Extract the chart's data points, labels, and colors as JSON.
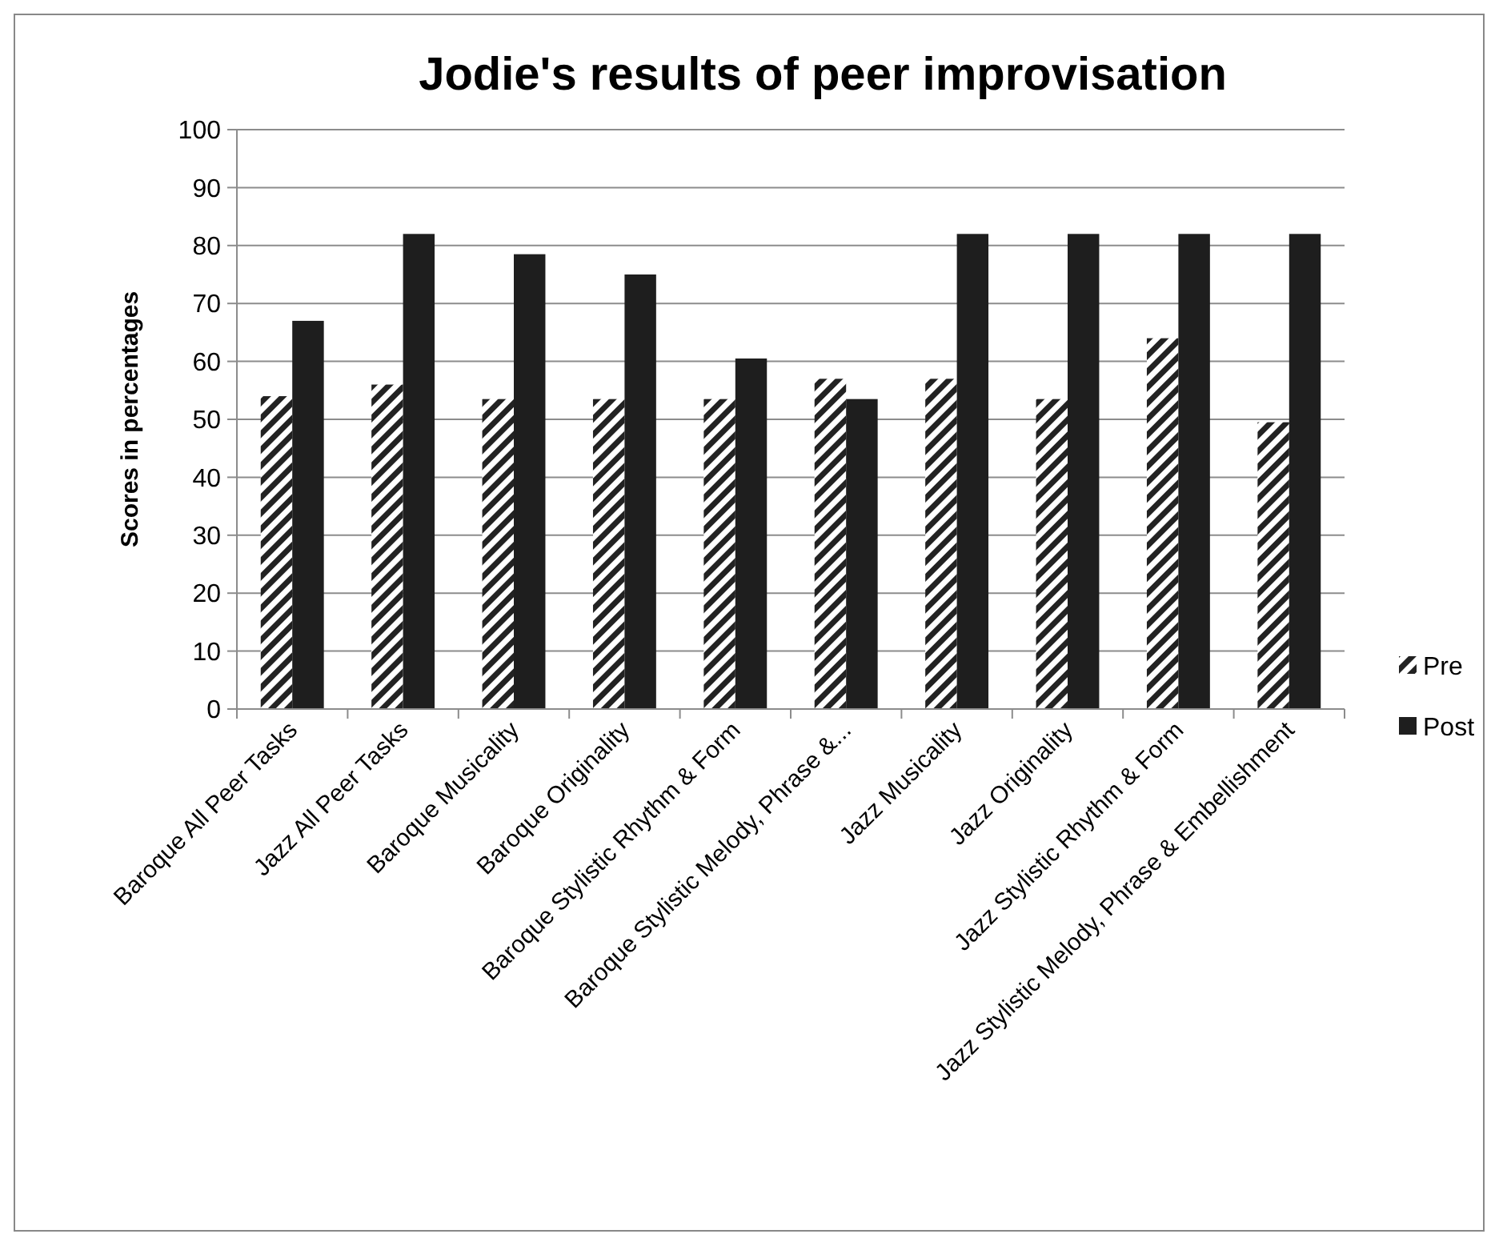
{
  "chart_data": {
    "type": "bar",
    "title": "Jodie's results of peer improvisation",
    "ylabel": "Scores in percentages",
    "categories": [
      "Baroque All Peer Tasks",
      "Jazz All Peer Tasks",
      "Baroque Musicality",
      "Baroque Originality",
      "Baroque Stylistic Rhythm & Form",
      "Baroque Stylistic Melody, Phrase &...",
      "Jazz Musicality",
      "Jazz Originality",
      "Jazz Stylistic Rhythm & Form",
      "Jazz Stylistic Melody, Phrase & Embellishment"
    ],
    "series": [
      {
        "name": "Pre",
        "color": "#222222",
        "values": [
          54,
          56,
          53.5,
          53.5,
          53.5,
          57,
          57,
          53.5,
          64,
          49.5
        ]
      },
      {
        "name": "Post",
        "color": "#1e1e1e",
        "values": [
          67,
          82,
          78.5,
          75,
          60.5,
          53.5,
          82,
          82,
          82,
          82
        ]
      }
    ],
    "ylim": [
      0,
      100
    ],
    "yticks": [
      0,
      10,
      20,
      30,
      40,
      50,
      60,
      70,
      80,
      90,
      100
    ],
    "grid": "y",
    "legend": "right"
  }
}
